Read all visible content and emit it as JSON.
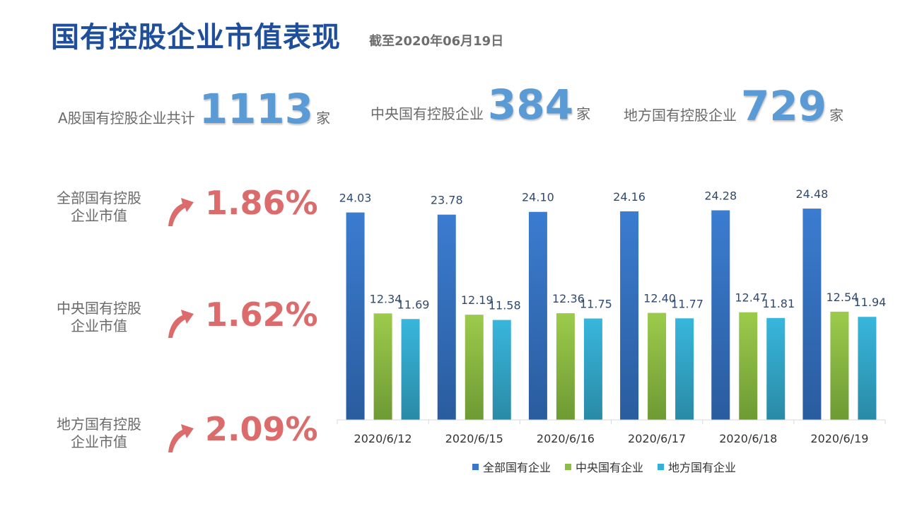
{
  "header": {
    "title": "国有控股企业市值表现",
    "subtitle": "截至2020年06月19日"
  },
  "stats": [
    {
      "label": "A股国有控股企业共计",
      "value": "1113",
      "unit": "家"
    },
    {
      "label": "中央国有控股企业",
      "value": "384",
      "unit": "家"
    },
    {
      "label": "地方国有控股企业",
      "value": "729",
      "unit": "家"
    }
  ],
  "changes": [
    {
      "line1": "全部国有控股",
      "line2": "企业市值",
      "value": "1.86%"
    },
    {
      "line1": "中央国有控股",
      "line2": "企业市值",
      "value": "1.62%"
    },
    {
      "line1": "地方国有控股",
      "line2": "企业市值",
      "value": "2.09%"
    }
  ],
  "colors": {
    "title": "#1F4E9A",
    "stat_number": "#5B9BD5",
    "change": "#DC6B6B",
    "series_total": "#3B75C8",
    "series_central": "#8DBE44",
    "series_local": "#35B0D6"
  },
  "chart_data": {
    "type": "bar",
    "categories": [
      "2020/6/12",
      "2020/6/15",
      "2020/6/16",
      "2020/6/17",
      "2020/6/18",
      "2020/6/19"
    ],
    "series": [
      {
        "name": "全部国有企业",
        "values": [
          24.03,
          23.78,
          24.1,
          24.16,
          24.28,
          24.48
        ]
      },
      {
        "name": "中央国有企业",
        "values": [
          12.34,
          12.19,
          12.36,
          12.4,
          12.47,
          12.54
        ]
      },
      {
        "name": "地方国有企业",
        "values": [
          11.69,
          11.58,
          11.75,
          11.77,
          11.81,
          11.94
        ]
      }
    ],
    "value_labels": [
      [
        "24.03",
        "23.78",
        "24.10",
        "24.16",
        "24.28",
        "24.48"
      ],
      [
        "12.34",
        "12.19",
        "12.36",
        "12.40",
        "12.47",
        "12.54"
      ],
      [
        "11.69",
        "11.58",
        "11.75",
        "11.77",
        "11.81",
        "11.94"
      ]
    ],
    "ylim": [
      0,
      25
    ],
    "legend_position": "bottom",
    "grid": false
  }
}
